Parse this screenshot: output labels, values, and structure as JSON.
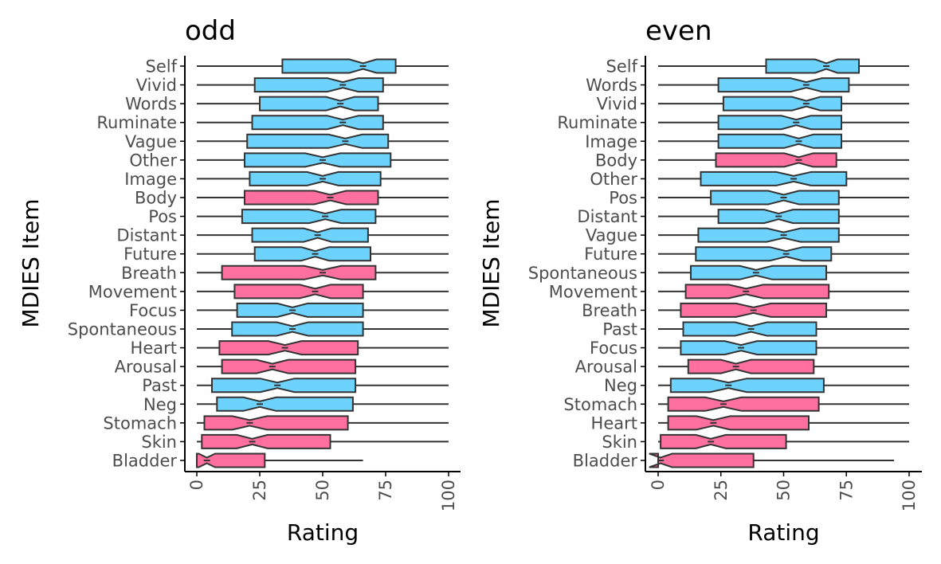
{
  "colors": {
    "cognitive": "#6DD3FC",
    "bodily": "#FF6F9F",
    "outline": "#333333"
  },
  "chart_data": [
    {
      "type": "boxplot",
      "title": "odd",
      "xlabel": "Rating",
      "ylabel": "MDIES Item",
      "xlim": [
        0,
        100
      ],
      "xticks": [
        0,
        25,
        50,
        75,
        100
      ],
      "grid": false,
      "notched": true,
      "items": [
        {
          "name": "Self",
          "group": "cognitive",
          "whisker_low": 0,
          "q1": 34,
          "median": 66,
          "q3": 79,
          "whisker_high": 100
        },
        {
          "name": "Vivid",
          "group": "cognitive",
          "whisker_low": 0,
          "q1": 23,
          "median": 58,
          "q3": 74,
          "whisker_high": 100
        },
        {
          "name": "Words",
          "group": "cognitive",
          "whisker_low": 0,
          "q1": 25,
          "median": 57,
          "q3": 72,
          "whisker_high": 100
        },
        {
          "name": "Ruminate",
          "group": "cognitive",
          "whisker_low": 0,
          "q1": 22,
          "median": 58,
          "q3": 74,
          "whisker_high": 100
        },
        {
          "name": "Vague",
          "group": "cognitive",
          "whisker_low": 0,
          "q1": 20,
          "median": 59,
          "q3": 76,
          "whisker_high": 100
        },
        {
          "name": "Other",
          "group": "cognitive",
          "whisker_low": 0,
          "q1": 19,
          "median": 50,
          "q3": 77,
          "whisker_high": 100
        },
        {
          "name": "Image",
          "group": "cognitive",
          "whisker_low": 0,
          "q1": 21,
          "median": 50,
          "q3": 73,
          "whisker_high": 100
        },
        {
          "name": "Body",
          "group": "bodily",
          "whisker_low": 0,
          "q1": 19,
          "median": 53,
          "q3": 72,
          "whisker_high": 100
        },
        {
          "name": "Pos",
          "group": "cognitive",
          "whisker_low": 0,
          "q1": 18,
          "median": 51,
          "q3": 71,
          "whisker_high": 100
        },
        {
          "name": "Distant",
          "group": "cognitive",
          "whisker_low": 0,
          "q1": 22,
          "median": 48,
          "q3": 68,
          "whisker_high": 100
        },
        {
          "name": "Future",
          "group": "cognitive",
          "whisker_low": 0,
          "q1": 23,
          "median": 47,
          "q3": 69,
          "whisker_high": 100
        },
        {
          "name": "Breath",
          "group": "bodily",
          "whisker_low": 0,
          "q1": 10,
          "median": 50,
          "q3": 71,
          "whisker_high": 100
        },
        {
          "name": "Movement",
          "group": "bodily",
          "whisker_low": 0,
          "q1": 15,
          "median": 47,
          "q3": 66,
          "whisker_high": 100
        },
        {
          "name": "Focus",
          "group": "cognitive",
          "whisker_low": 0,
          "q1": 16,
          "median": 38,
          "q3": 66,
          "whisker_high": 100
        },
        {
          "name": "Spontaneous",
          "group": "cognitive",
          "whisker_low": 0,
          "q1": 14,
          "median": 38,
          "q3": 66,
          "whisker_high": 100
        },
        {
          "name": "Heart",
          "group": "bodily",
          "whisker_low": 0,
          "q1": 9,
          "median": 35,
          "q3": 64,
          "whisker_high": 100
        },
        {
          "name": "Arousal",
          "group": "bodily",
          "whisker_low": 0,
          "q1": 10,
          "median": 30,
          "q3": 63,
          "whisker_high": 100
        },
        {
          "name": "Past",
          "group": "cognitive",
          "whisker_low": 0,
          "q1": 6,
          "median": 32,
          "q3": 63,
          "whisker_high": 100
        },
        {
          "name": "Neg",
          "group": "cognitive",
          "whisker_low": 0,
          "q1": 8,
          "median": 25,
          "q3": 62,
          "whisker_high": 100
        },
        {
          "name": "Stomach",
          "group": "bodily",
          "whisker_low": 0,
          "q1": 3,
          "median": 21,
          "q3": 60,
          "whisker_high": 100
        },
        {
          "name": "Skin",
          "group": "bodily",
          "whisker_low": 0,
          "q1": 2,
          "median": 22,
          "q3": 53,
          "whisker_high": 100
        },
        {
          "name": "Bladder",
          "group": "bodily",
          "whisker_low": 0,
          "q1": 0,
          "median": 4,
          "q3": 27,
          "whisker_high": 66
        }
      ]
    },
    {
      "type": "boxplot",
      "title": "even",
      "xlabel": "Rating",
      "ylabel": "MDIES Item",
      "xlim": [
        0,
        100
      ],
      "xticks": [
        0,
        25,
        50,
        75,
        100
      ],
      "grid": false,
      "notched": true,
      "items": [
        {
          "name": "Self",
          "group": "cognitive",
          "whisker_low": 0,
          "q1": 43,
          "median": 67,
          "q3": 80,
          "whisker_high": 100
        },
        {
          "name": "Words",
          "group": "cognitive",
          "whisker_low": 0,
          "q1": 24,
          "median": 59,
          "q3": 76,
          "whisker_high": 100
        },
        {
          "name": "Vivid",
          "group": "cognitive",
          "whisker_low": 0,
          "q1": 26,
          "median": 59,
          "q3": 73,
          "whisker_high": 100
        },
        {
          "name": "Ruminate",
          "group": "cognitive",
          "whisker_low": 0,
          "q1": 24,
          "median": 55,
          "q3": 73,
          "whisker_high": 100
        },
        {
          "name": "Image",
          "group": "cognitive",
          "whisker_low": 0,
          "q1": 24,
          "median": 56,
          "q3": 73,
          "whisker_high": 100
        },
        {
          "name": "Body",
          "group": "bodily",
          "whisker_low": 0,
          "q1": 23,
          "median": 56,
          "q3": 71,
          "whisker_high": 100
        },
        {
          "name": "Other",
          "group": "cognitive",
          "whisker_low": 0,
          "q1": 17,
          "median": 54,
          "q3": 75,
          "whisker_high": 100
        },
        {
          "name": "Pos",
          "group": "cognitive",
          "whisker_low": 0,
          "q1": 21,
          "median": 50,
          "q3": 72,
          "whisker_high": 100
        },
        {
          "name": "Distant",
          "group": "cognitive",
          "whisker_low": 0,
          "q1": 24,
          "median": 48,
          "q3": 72,
          "whisker_high": 100
        },
        {
          "name": "Vague",
          "group": "cognitive",
          "whisker_low": 0,
          "q1": 16,
          "median": 50,
          "q3": 72,
          "whisker_high": 100
        },
        {
          "name": "Future",
          "group": "cognitive",
          "whisker_low": 0,
          "q1": 15,
          "median": 51,
          "q3": 69,
          "whisker_high": 100
        },
        {
          "name": "Spontaneous",
          "group": "cognitive",
          "whisker_low": 0,
          "q1": 13,
          "median": 39,
          "q3": 67,
          "whisker_high": 100
        },
        {
          "name": "Movement",
          "group": "bodily",
          "whisker_low": 0,
          "q1": 11,
          "median": 35,
          "q3": 68,
          "whisker_high": 100
        },
        {
          "name": "Breath",
          "group": "bodily",
          "whisker_low": 0,
          "q1": 9,
          "median": 38,
          "q3": 67,
          "whisker_high": 100
        },
        {
          "name": "Past",
          "group": "cognitive",
          "whisker_low": 0,
          "q1": 10,
          "median": 37,
          "q3": 63,
          "whisker_high": 100
        },
        {
          "name": "Focus",
          "group": "cognitive",
          "whisker_low": 0,
          "q1": 9,
          "median": 33,
          "q3": 63,
          "whisker_high": 100
        },
        {
          "name": "Arousal",
          "group": "bodily",
          "whisker_low": 0,
          "q1": 12,
          "median": 31,
          "q3": 62,
          "whisker_high": 100
        },
        {
          "name": "Neg",
          "group": "cognitive",
          "whisker_low": 0,
          "q1": 5,
          "median": 28,
          "q3": 66,
          "whisker_high": 100
        },
        {
          "name": "Stomach",
          "group": "bodily",
          "whisker_low": 0,
          "q1": 4,
          "median": 26,
          "q3": 64,
          "whisker_high": 100
        },
        {
          "name": "Heart",
          "group": "bodily",
          "whisker_low": 0,
          "q1": 4,
          "median": 22,
          "q3": 60,
          "whisker_high": 100
        },
        {
          "name": "Skin",
          "group": "bodily",
          "whisker_low": 0,
          "q1": 1,
          "median": 21,
          "q3": 51,
          "whisker_high": 100
        },
        {
          "name": "Bladder",
          "group": "bodily",
          "whisker_low": 0,
          "q1": 0,
          "median": 1,
          "q3": 38,
          "whisker_high": 94
        }
      ]
    }
  ]
}
